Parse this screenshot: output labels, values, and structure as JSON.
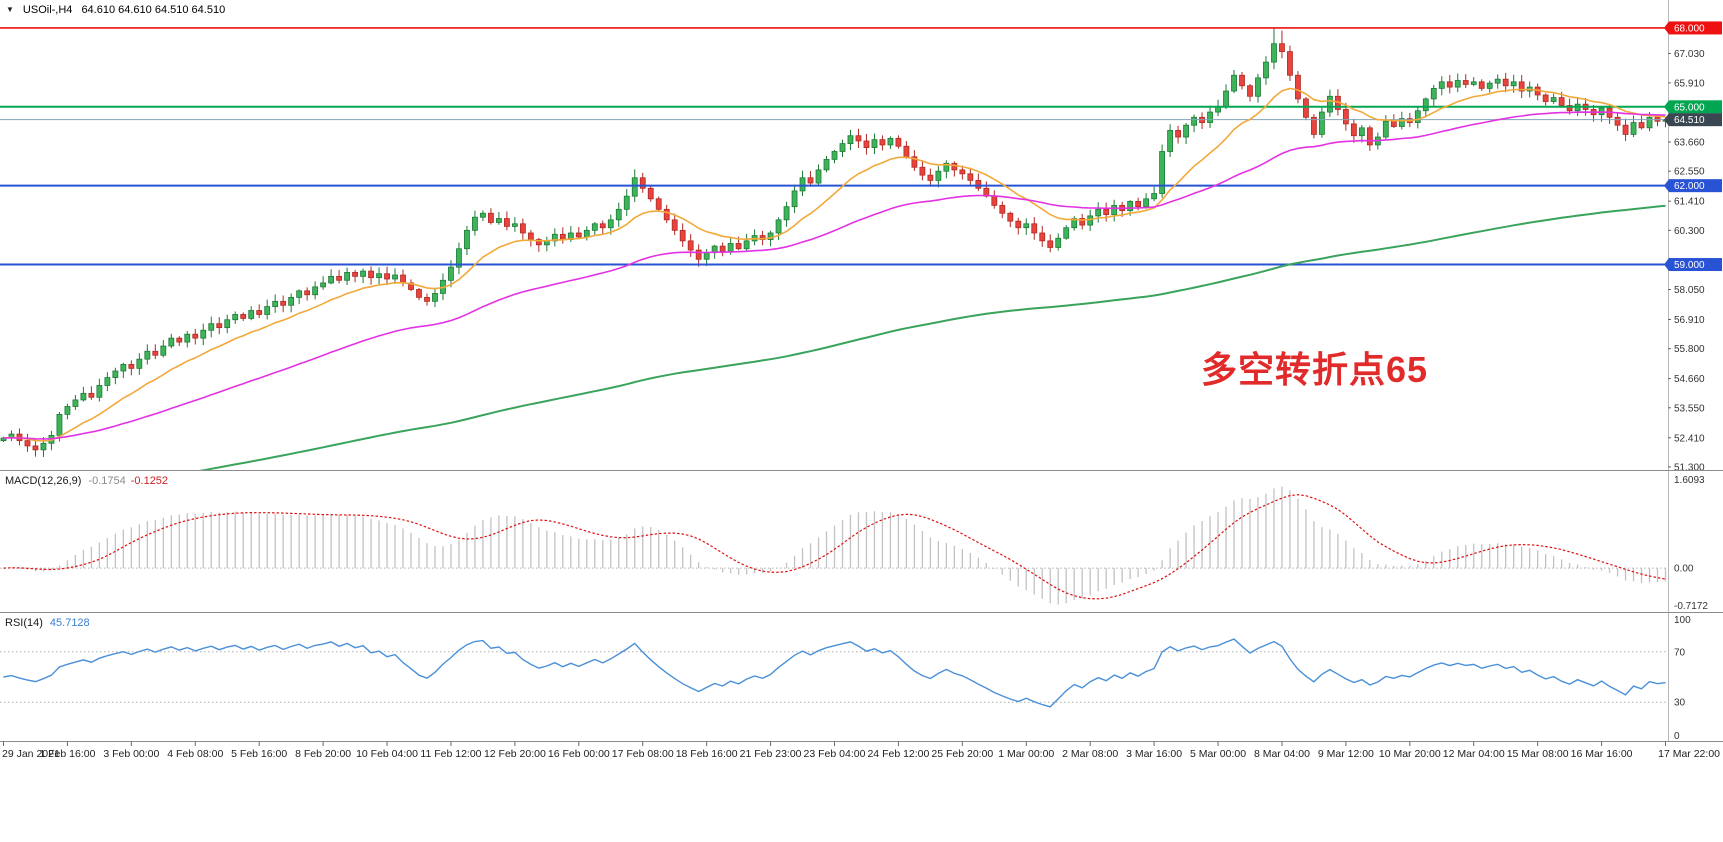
{
  "window": {
    "dropdown_icon": "▼",
    "symbol_timeframe": "USOil-,H4",
    "ohlc": "64.610 64.610 64.510 64.510"
  },
  "annotation": {
    "text": "多空转折点65",
    "color": "#e12b2b"
  },
  "chart_data": {
    "type": "candlestick",
    "symbol": "USOil-",
    "timeframe": "H4",
    "title": "USOil-,H4",
    "ohlc_display": {
      "open": "64.610",
      "high": "64.610",
      "low": "64.510",
      "close": "64.510"
    },
    "ylim": [
      51.26,
      68.53
    ],
    "first_open": 52.3,
    "candles_per_label": 8,
    "x_labels": [
      "29 Jan 2021",
      "1 Feb 16:00",
      "3 Feb 00:00",
      "4 Feb 08:00",
      "5 Feb 16:00",
      "8 Feb 20:00",
      "10 Feb 04:00",
      "11 Feb 12:00",
      "12 Feb 20:00",
      "16 Feb 00:00",
      "17 Feb 08:00",
      "18 Feb 16:00",
      "21 Feb 23:00",
      "23 Feb 04:00",
      "24 Feb 12:00",
      "25 Feb 20:00",
      "1 Mar 00:00",
      "2 Mar 08:00",
      "3 Mar 16:00",
      "5 Mar 00:00",
      "8 Mar 04:00",
      "9 Mar 12:00",
      "10 Mar 20:00",
      "12 Mar 04:00",
      "15 Mar 08:00",
      "16 Mar 16:00",
      "17 Mar 22:00"
    ],
    "closes": [
      52.4,
      52.55,
      52.3,
      52.1,
      51.95,
      52.2,
      52.5,
      53.3,
      53.6,
      53.85,
      54.1,
      53.95,
      54.4,
      54.7,
      54.95,
      55.2,
      55.05,
      55.4,
      55.7,
      55.55,
      55.9,
      56.2,
      56.05,
      56.35,
      56.2,
      56.5,
      56.75,
      56.6,
      56.9,
      57.1,
      56.95,
      57.25,
      57.1,
      57.4,
      57.6,
      57.45,
      57.75,
      58.0,
      57.85,
      58.15,
      58.3,
      58.55,
      58.4,
      58.7,
      58.55,
      58.75,
      58.5,
      58.65,
      58.45,
      58.6,
      58.3,
      58.05,
      57.75,
      57.6,
      57.9,
      58.4,
      58.9,
      59.6,
      60.3,
      60.8,
      60.95,
      60.6,
      60.75,
      60.45,
      60.55,
      60.2,
      59.95,
      59.75,
      59.9,
      60.15,
      59.95,
      60.2,
      60.05,
      60.3,
      60.55,
      60.4,
      60.7,
      61.1,
      61.6,
      62.3,
      61.9,
      61.5,
      61.1,
      60.7,
      60.3,
      59.9,
      59.55,
      59.2,
      59.45,
      59.7,
      59.5,
      59.8,
      59.6,
      59.9,
      60.1,
      59.95,
      60.2,
      60.7,
      61.2,
      61.8,
      62.3,
      62.1,
      62.6,
      63.0,
      63.3,
      63.6,
      63.9,
      63.7,
      63.45,
      63.75,
      63.55,
      63.8,
      63.5,
      63.1,
      62.7,
      62.4,
      62.2,
      62.55,
      62.85,
      62.6,
      62.45,
      62.2,
      61.9,
      61.6,
      61.25,
      60.95,
      60.65,
      60.4,
      60.55,
      60.2,
      59.9,
      59.65,
      60.0,
      60.4,
      60.75,
      60.5,
      60.85,
      61.1,
      60.9,
      61.25,
      61.05,
      61.4,
      61.2,
      61.5,
      61.7,
      63.3,
      64.1,
      63.85,
      64.3,
      64.6,
      64.4,
      64.8,
      65.0,
      65.6,
      66.2,
      65.8,
      65.4,
      66.1,
      66.7,
      67.4,
      67.1,
      66.2,
      65.3,
      64.6,
      63.95,
      64.8,
      65.4,
      64.9,
      64.35,
      63.9,
      64.2,
      63.55,
      63.85,
      64.45,
      64.25,
      64.55,
      64.4,
      64.85,
      65.3,
      65.7,
      65.95,
      65.75,
      66.0,
      65.85,
      65.95,
      65.7,
      65.9,
      66.05,
      65.8,
      65.95,
      65.6,
      65.75,
      65.45,
      65.2,
      65.35,
      65.05,
      64.85,
      65.1,
      64.9,
      64.7,
      64.95,
      64.6,
      64.3,
      63.95,
      64.4,
      64.2,
      64.6,
      64.45,
      64.51
    ],
    "wick_overrides": {
      "4": {
        "low": 51.82
      },
      "59": {
        "high": 61.05
      },
      "79": {
        "high": 62.62
      },
      "87": {
        "low": 58.92
      },
      "106": {
        "high": 63.97
      },
      "159": {
        "high": 68.0
      },
      "160": {
        "high": 67.9
      },
      "164": {
        "low": 63.8
      },
      "171": {
        "low": 63.32
      },
      "203": {
        "low": 63.7
      }
    },
    "candle_colors": {
      "up_fill": "#3db45a",
      "up_stroke": "#1d7a36",
      "down_fill": "#e8433c",
      "down_stroke": "#b02a24"
    },
    "price_ticks": [
      "67.030",
      "65.910",
      "63.660",
      "62.550",
      "61.410",
      "60.300",
      "58.050",
      "56.910",
      "55.800",
      "54.660",
      "53.550",
      "52.410",
      "51.300"
    ],
    "hlines": [
      {
        "price": 68.0,
        "label": "68.000",
        "color": "#ee1111",
        "width": 1.6,
        "badge": "#ee1111"
      },
      {
        "price": 65.0,
        "label": "65.000",
        "color": "#00a651",
        "width": 2,
        "badge": "#00a651"
      },
      {
        "price": 64.51,
        "label": "64.510",
        "color": "#7fa3b8",
        "width": 1,
        "badge": "#3a4752"
      },
      {
        "price": 62.0,
        "label": "62.000",
        "color": "#2853d4",
        "width": 2,
        "badge": "#2853d4"
      },
      {
        "price": 59.0,
        "label": "59.000",
        "color": "#2853d4",
        "width": 2,
        "badge": "#2853d4"
      }
    ],
    "moving_averages": [
      {
        "name": "ma-fast",
        "period": 13,
        "color": "#f2a93b",
        "width": 1.6
      },
      {
        "name": "ma-mid",
        "period": 50,
        "color": "#e332e3",
        "width": 1.6
      },
      {
        "name": "ma-slow",
        "period": 200,
        "color": "#3aa35c",
        "width": 2,
        "seed": 50.2
      }
    ],
    "macd": {
      "label": "MACD(12,26,9)",
      "main_value": "-0.1754",
      "signal_value": "-0.1252",
      "fast": 12,
      "slow": 26,
      "signal_period": 9,
      "scale_max": 1.6093,
      "scale_min": -0.7172,
      "axis_labels": [
        "1.6093",
        "0.00",
        "-0.7172"
      ],
      "bar_color": "#c2c2c2",
      "signal_color": "#dd1111"
    },
    "rsi": {
      "label": "RSI(14)",
      "value_text": "45.7128",
      "period": 14,
      "levels": [
        70,
        30
      ],
      "range": [
        0,
        100
      ],
      "axis_labels": [
        "100",
        "70",
        "30",
        "0"
      ],
      "line_color": "#4a90d9"
    }
  }
}
